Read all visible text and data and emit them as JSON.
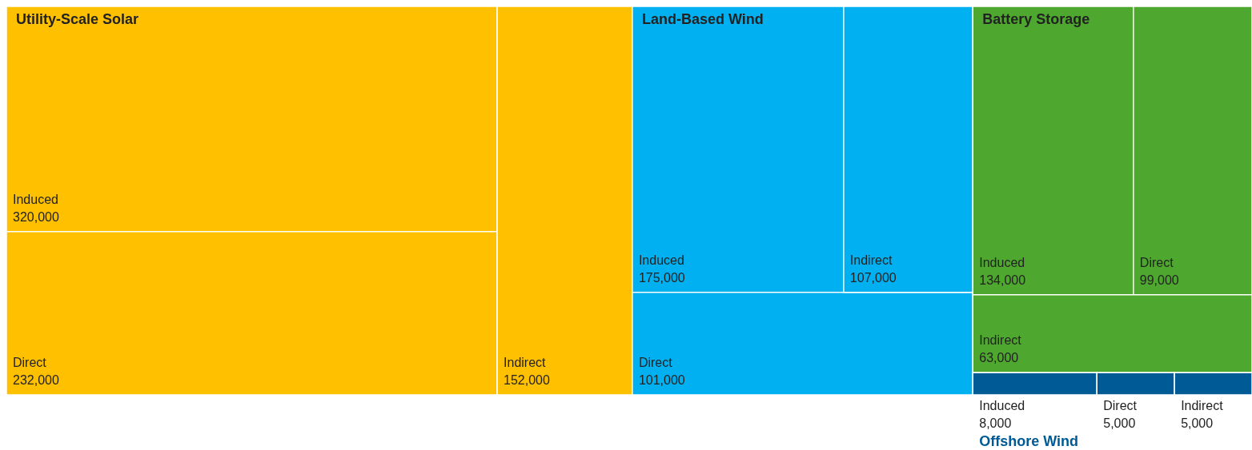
{
  "chart_data": {
    "type": "other",
    "categories": [
      "Induced",
      "Direct",
      "Indirect"
    ],
    "series": [
      {
        "name": "Utility-Scale Solar",
        "color": "#ffc000",
        "values": [
          320000,
          232000,
          152000
        ],
        "value_labels": [
          "320,000",
          "232,000",
          "152,000"
        ]
      },
      {
        "name": "Land-Based Wind",
        "color": "#00b0f0",
        "values": [
          175000,
          101000,
          107000
        ],
        "value_labels": [
          "175,000",
          "101,000",
          "107,000"
        ]
      },
      {
        "name": "Battery Storage",
        "color": "#4ea72e",
        "values": [
          134000,
          99000,
          63000
        ],
        "value_labels": [
          "134,000",
          "99,000",
          "63,000"
        ]
      },
      {
        "name": "Offshore Wind",
        "color": "#005a96",
        "values": [
          8000,
          5000,
          5000
        ],
        "value_labels": [
          "8,000",
          "5,000",
          "5,000"
        ]
      }
    ]
  }
}
